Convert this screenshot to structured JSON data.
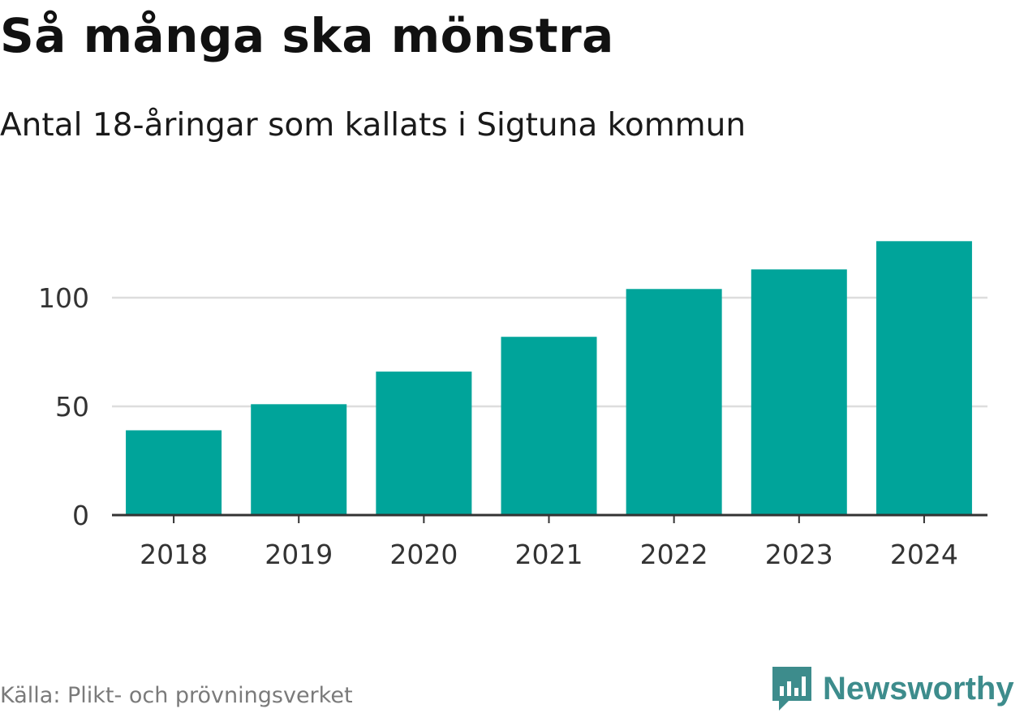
{
  "header": {
    "title": "Så många ska mönstra",
    "subtitle": "Antal 18-åringar som kallats i Sigtuna kommun"
  },
  "footer": {
    "source": "Källa: Plikt- och prövningsverket",
    "brand": "Newsworthy"
  },
  "colors": {
    "bar": "#00a49a",
    "grid": "#dddddd",
    "axis": "#333333",
    "brand": "#3d8c8c"
  },
  "chart_data": {
    "type": "bar",
    "categories": [
      "2018",
      "2019",
      "2020",
      "2021",
      "2022",
      "2023",
      "2024"
    ],
    "values": [
      39,
      51,
      66,
      82,
      104,
      113,
      126
    ],
    "yticks": [
      0,
      50,
      100
    ],
    "ylim": [
      0,
      132
    ],
    "grid": true,
    "xlabel": "",
    "ylabel": ""
  }
}
